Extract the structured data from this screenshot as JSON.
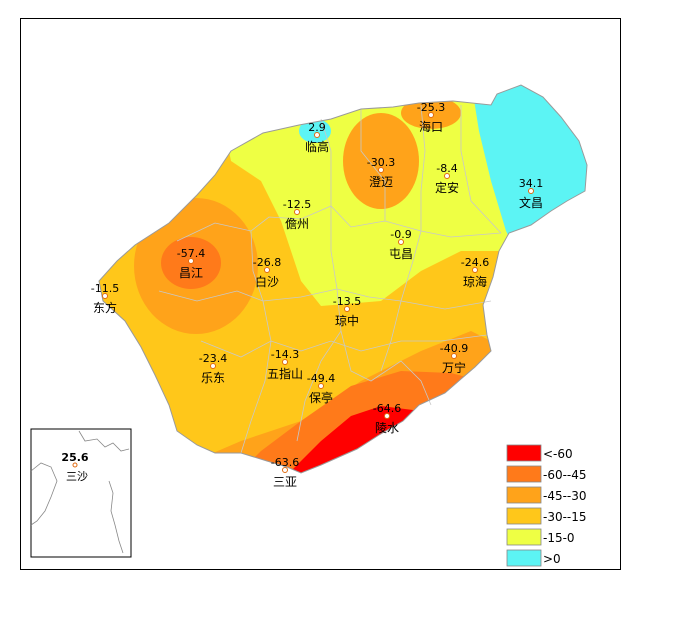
{
  "colors": {
    "lt_neg60": "#ff0000",
    "neg60_neg45": "#ff7a1a",
    "neg45_neg30": "#ffa31a",
    "neg30_neg15": "#ffc71a",
    "neg15_0": "#eeff44",
    "gt_0": "#5cf4f4",
    "boundary": "#c8c8c8",
    "station_marker": "#e06a10"
  },
  "legend": [
    {
      "label": "<-60",
      "color_key": "lt_neg60"
    },
    {
      "label": "-60--45",
      "color_key": "neg60_neg45"
    },
    {
      "label": "-45--30",
      "color_key": "neg45_neg30"
    },
    {
      "label": "-30--15",
      "color_key": "neg30_neg15"
    },
    {
      "label": "-15-0",
      "color_key": "neg15_0"
    },
    {
      "label": ">0",
      "color_key": "gt_0"
    }
  ],
  "stations": [
    {
      "name": "海口",
      "value": "-25.3"
    },
    {
      "name": "临高",
      "value": "2.9"
    },
    {
      "name": "澄迈",
      "value": "-30.3"
    },
    {
      "name": "定安",
      "value": "-8.4"
    },
    {
      "name": "文昌",
      "value": "34.1"
    },
    {
      "name": "儋州",
      "value": "-12.5"
    },
    {
      "name": "屯昌",
      "value": "-0.9"
    },
    {
      "name": "昌江",
      "value": "-57.4"
    },
    {
      "name": "白沙",
      "value": "-26.8"
    },
    {
      "name": "琼海",
      "value": "-24.6"
    },
    {
      "name": "东方",
      "value": "-11.5"
    },
    {
      "name": "琼中",
      "value": "-13.5"
    },
    {
      "name": "乐东",
      "value": "-23.4"
    },
    {
      "name": "五指山",
      "value": "-14.3"
    },
    {
      "name": "万宁",
      "value": "-40.9"
    },
    {
      "name": "保亭",
      "value": "-49.4"
    },
    {
      "name": "陵水",
      "value": "-64.6"
    },
    {
      "name": "三亚",
      "value": "-63.6"
    }
  ],
  "inset": {
    "name": "三沙",
    "value": "25.6"
  }
}
